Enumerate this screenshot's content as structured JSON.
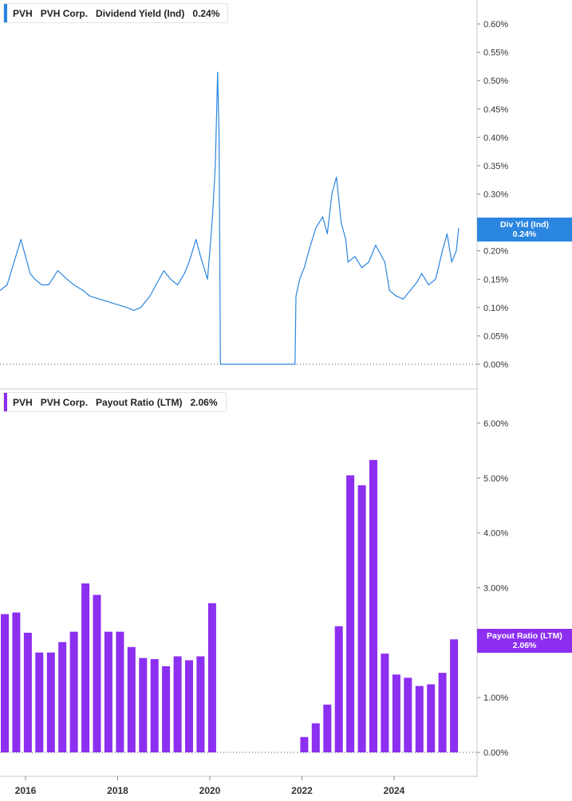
{
  "colors": {
    "yield": "#2b86e0",
    "payout": "#8c2ff0",
    "axis": "#c8c8c8",
    "text": "#333333"
  },
  "panels": {
    "yield": {
      "ticker": "PVH",
      "company": "PVH Corp.",
      "metric": "Dividend Yield (Ind)",
      "value": "0.24%",
      "flag_label": "Div Yld (Ind)",
      "flag_value": "0.24%"
    },
    "payout": {
      "ticker": "PVH",
      "company": "PVH Corp.",
      "metric": "Payout Ratio (LTM)",
      "value": "2.06%",
      "flag_label": "Payout Ratio (LTM)",
      "flag_value": "2.06%"
    }
  },
  "chart_data": [
    {
      "type": "line",
      "series": [
        {
          "name": "Dividend Yield (Ind)"
        }
      ],
      "ylim": [
        0,
        0.6
      ],
      "y_ticks": [
        "0.00%",
        "0.05%",
        "0.10%",
        "0.15%",
        "0.20%",
        "0.25%",
        "0.30%",
        "0.35%",
        "0.40%",
        "0.45%",
        "0.50%",
        "0.55%",
        "0.60%"
      ],
      "x": [
        2015.45,
        2015.6,
        2015.75,
        2015.9,
        2016.0,
        2016.1,
        2016.2,
        2016.35,
        2016.5,
        2016.7,
        2016.9,
        2017.05,
        2017.25,
        2017.4,
        2017.6,
        2017.8,
        2018.0,
        2018.2,
        2018.35,
        2018.5,
        2018.7,
        2018.9,
        2019.0,
        2019.15,
        2019.3,
        2019.45,
        2019.55,
        2019.7,
        2019.8,
        2019.95,
        2020.05,
        2020.12,
        2020.17,
        2020.2,
        2020.23,
        2020.25,
        2021.85,
        2021.87,
        2021.95,
        2022.05,
        2022.15,
        2022.3,
        2022.45,
        2022.55,
        2022.65,
        2022.75,
        2022.85,
        2022.95,
        2023.0,
        2023.15,
        2023.3,
        2023.45,
        2023.6,
        2023.8,
        2023.9,
        2024.05,
        2024.2,
        2024.35,
        2024.5,
        2024.6,
        2024.75,
        2024.9,
        2025.05,
        2025.15,
        2025.25,
        2025.35,
        2025.4
      ],
      "y": [
        0.13,
        0.14,
        0.18,
        0.22,
        0.19,
        0.16,
        0.15,
        0.14,
        0.14,
        0.165,
        0.15,
        0.14,
        0.13,
        0.12,
        0.115,
        0.11,
        0.105,
        0.1,
        0.095,
        0.1,
        0.12,
        0.15,
        0.165,
        0.15,
        0.14,
        0.16,
        0.18,
        0.22,
        0.19,
        0.15,
        0.25,
        0.35,
        0.515,
        0.4,
        0.0,
        0.0,
        0.0,
        0.12,
        0.15,
        0.17,
        0.2,
        0.24,
        0.26,
        0.23,
        0.3,
        0.33,
        0.25,
        0.22,
        0.18,
        0.19,
        0.17,
        0.18,
        0.21,
        0.18,
        0.13,
        0.12,
        0.115,
        0.13,
        0.145,
        0.16,
        0.14,
        0.15,
        0.2,
        0.23,
        0.18,
        0.2,
        0.24
      ]
    },
    {
      "type": "bar",
      "series": [
        {
          "name": "Payout Ratio (LTM)"
        }
      ],
      "ylim": [
        0,
        6.0
      ],
      "y_ticks": [
        "0.00%",
        "1.00%",
        "2.00%",
        "3.00%",
        "4.00%",
        "5.00%",
        "6.00%"
      ],
      "x_ticks": [
        "2016",
        "2018",
        "2020",
        "2022",
        "2024"
      ],
      "x": [
        2015.55,
        2015.8,
        2016.05,
        2016.3,
        2016.55,
        2016.8,
        2017.05,
        2017.3,
        2017.55,
        2017.8,
        2018.05,
        2018.3,
        2018.55,
        2018.8,
        2019.05,
        2019.3,
        2019.55,
        2019.8,
        2020.05,
        2022.05,
        2022.3,
        2022.55,
        2022.8,
        2023.05,
        2023.3,
        2023.55,
        2023.8,
        2024.05,
        2024.3,
        2024.55,
        2024.8,
        2025.05,
        2025.3
      ],
      "values": [
        2.52,
        2.55,
        2.18,
        1.82,
        1.82,
        2.01,
        2.2,
        3.08,
        2.87,
        2.2,
        2.2,
        1.92,
        1.72,
        1.7,
        1.57,
        1.75,
        1.68,
        1.75,
        2.72,
        0.28,
        0.53,
        0.87,
        2.3,
        5.05,
        4.87,
        5.33,
        1.8,
        1.42,
        1.36,
        1.21,
        1.24,
        1.45,
        2.06
      ]
    }
  ]
}
